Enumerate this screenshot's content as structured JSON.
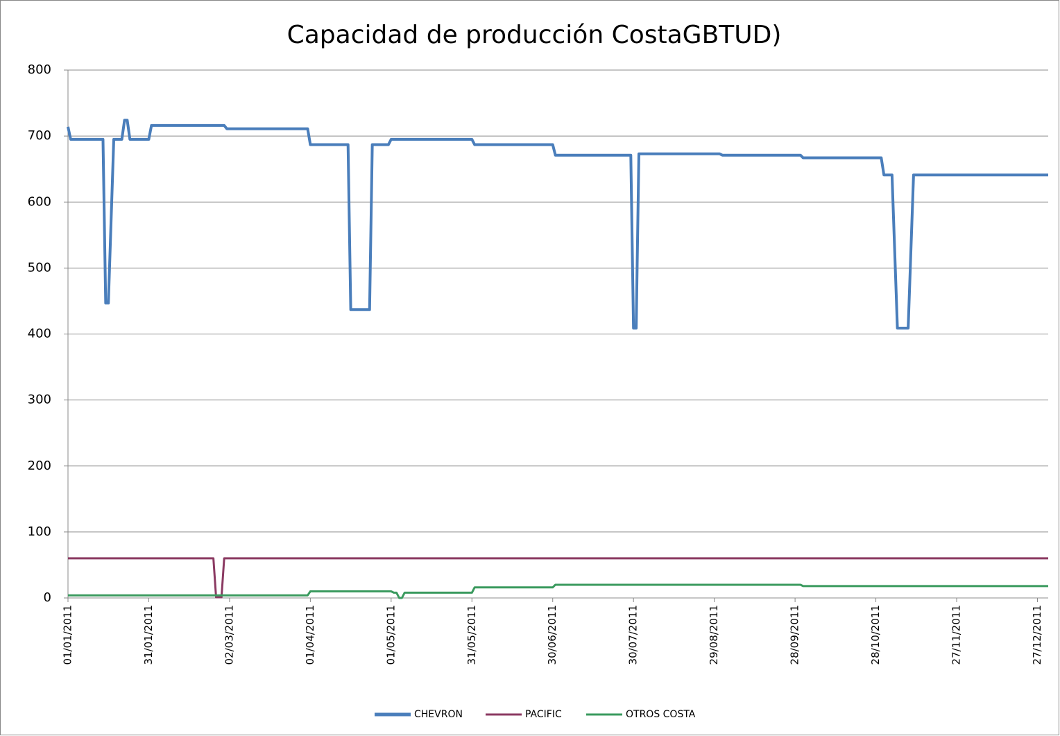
{
  "chart_data": {
    "type": "line",
    "title": "Capacidad de producción CostaGBTUD)",
    "x": [
      "01/01/2011",
      "02/01/2011",
      "14/01/2011",
      "15/01/2011",
      "16/01/2011",
      "18/01/2011",
      "21/01/2011",
      "22/01/2011",
      "23/01/2011",
      "24/01/2011",
      "31/01/2011",
      "01/02/2011",
      "24/02/2011",
      "25/02/2011",
      "27/02/2011",
      "28/02/2011",
      "01/03/2011",
      "31/03/2011",
      "01/04/2011",
      "15/04/2011",
      "16/04/2011",
      "23/04/2011",
      "24/04/2011",
      "30/04/2011",
      "01/05/2011",
      "02/05/2011",
      "03/05/2011",
      "04/05/2011",
      "05/05/2011",
      "06/05/2011",
      "31/05/2011",
      "01/06/2011",
      "30/06/2011",
      "01/07/2011",
      "29/07/2011",
      "30/07/2011",
      "31/07/2011",
      "01/08/2011",
      "31/08/2011",
      "01/09/2011",
      "30/09/2011",
      "01/10/2011",
      "30/10/2011",
      "31/10/2011",
      "03/11/2011",
      "05/11/2011",
      "09/11/2011",
      "11/11/2011",
      "31/12/2011"
    ],
    "series": [
      {
        "name": "CHEVRON",
        "color": "#4a7ebb",
        "values": [
          714,
          695,
          695,
          447,
          447,
          695,
          695,
          724,
          724,
          695,
          695,
          716,
          716,
          716,
          716,
          716,
          711,
          711,
          687,
          687,
          437,
          437,
          687,
          687,
          695,
          695,
          695,
          695,
          695,
          695,
          695,
          687,
          687,
          671,
          671,
          409,
          409,
          673,
          673,
          671,
          671,
          667,
          667,
          641,
          641,
          409,
          409,
          641,
          641
        ]
      },
      {
        "name": "PACIFIC",
        "color": "#8b3a62",
        "values": [
          60,
          60,
          60,
          60,
          60,
          60,
          60,
          60,
          60,
          60,
          60,
          60,
          60,
          1,
          1,
          60,
          60,
          60,
          60,
          60,
          60,
          60,
          60,
          60,
          60,
          60,
          60,
          60,
          60,
          60,
          60,
          60,
          60,
          60,
          60,
          60,
          60,
          60,
          60,
          60,
          60,
          60,
          60,
          60,
          60,
          60,
          60,
          60,
          60
        ]
      },
      {
        "name": "OTROS COSTA",
        "color": "#3a9a5e",
        "values": [
          4,
          4,
          4,
          4,
          4,
          4,
          4,
          4,
          4,
          4,
          4,
          4,
          4,
          4,
          4,
          4,
          4,
          4,
          10,
          10,
          10,
          10,
          10,
          10,
          10,
          8,
          8,
          0,
          0,
          8,
          8,
          16,
          16,
          20,
          20,
          20,
          20,
          20,
          20,
          20,
          20,
          18,
          18,
          18,
          18,
          18,
          18,
          18,
          18
        ]
      }
    ],
    "xlim": [
      "01/01/2011",
      "31/12/2011"
    ],
    "xticks": [
      "01/01/2011",
      "31/01/2011",
      "02/03/2011",
      "01/04/2011",
      "01/05/2011",
      "31/05/2011",
      "30/06/2011",
      "30/07/2011",
      "29/08/2011",
      "28/09/2011",
      "28/10/2011",
      "27/11/2011",
      "27/12/2011"
    ],
    "ylim": [
      0,
      800
    ],
    "yticks": [
      0,
      100,
      200,
      300,
      400,
      500,
      600,
      700,
      800
    ],
    "grid": true,
    "legend": "bottom"
  }
}
